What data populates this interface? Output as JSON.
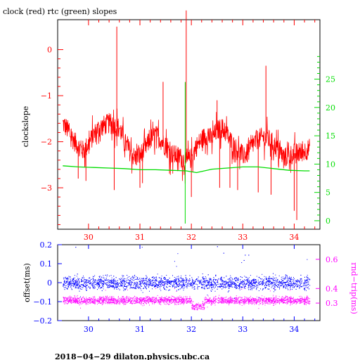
{
  "colors": {
    "clock": "#ff0000",
    "rtc": "#00dd00",
    "offset": "#0000ff",
    "roundtrip": "#ff00ff",
    "axis": "#000000"
  },
  "chart_data": [
    {
      "type": "line",
      "title": "clock (red) rtc (green) slopes",
      "ylabel": "clockslope",
      "y2label": "",
      "xlim": [
        29.4,
        34.5
      ],
      "ylim": [
        -3.9,
        0.65
      ],
      "y2lim": [
        -1.5,
        35.5
      ],
      "x_ticks": [
        "30",
        "31",
        "32",
        "33",
        "34"
      ],
      "y_ticks": [
        "0",
        "−1",
        "−2",
        "−3"
      ],
      "y2_ticks": [
        "0",
        "5",
        "10",
        "15",
        "20",
        "25"
      ],
      "series": [
        {
          "name": "clock",
          "axis": "left",
          "x": [
            29.5,
            29.6,
            29.7,
            29.8,
            29.9,
            30.0,
            30.1,
            30.2,
            30.3,
            30.4,
            30.5,
            30.6,
            30.7,
            30.8,
            30.9,
            31.0,
            31.1,
            31.2,
            31.3,
            31.4,
            31.5,
            31.6,
            31.7,
            31.8,
            31.9,
            32.0,
            32.1,
            32.2,
            32.3,
            32.4,
            32.5,
            32.6,
            32.7,
            32.8,
            32.9,
            33.0,
            33.1,
            33.2,
            33.3,
            33.4,
            33.5,
            33.6,
            33.7,
            33.8,
            33.9,
            34.0,
            34.1,
            34.2,
            34.3
          ],
          "y": [
            -1.6,
            -1.75,
            -1.95,
            -2.1,
            -2.2,
            -2.05,
            -1.85,
            -1.7,
            -1.65,
            -1.6,
            -1.65,
            -1.7,
            -2.0,
            -2.2,
            -2.35,
            -2.3,
            -2.15,
            -1.95,
            -1.85,
            -1.95,
            -2.1,
            -2.25,
            -2.3,
            -2.35,
            -2.45,
            -2.35,
            -2.1,
            -1.95,
            -1.85,
            -1.95,
            -1.75,
            -1.7,
            -1.85,
            -2.05,
            -2.2,
            -2.3,
            -2.25,
            -2.05,
            -1.95,
            -1.9,
            -1.95,
            -2.05,
            -2.2,
            -2.35,
            -2.3,
            -2.25,
            -2.25,
            -2.2,
            -2.15
          ]
        },
        {
          "name": "rtc",
          "axis": "right",
          "x": [
            29.5,
            29.8,
            30.1,
            30.4,
            30.7,
            31.0,
            31.3,
            31.6,
            31.9,
            32.1,
            32.4,
            32.7,
            33.0,
            33.3,
            33.6,
            33.9,
            34.2,
            34.3
          ],
          "y": [
            9.7,
            9.5,
            9.4,
            9.3,
            9.2,
            9.0,
            9.0,
            8.9,
            8.8,
            8.5,
            9.1,
            9.3,
            9.5,
            9.5,
            9.2,
            8.9,
            8.8,
            8.8
          ]
        }
      ],
      "spikes": {
        "clock": [
          [
            29.8,
            -2.8
          ],
          [
            29.95,
            -2.85
          ],
          [
            30.55,
            0.5
          ],
          [
            30.5,
            -3.05
          ],
          [
            31.0,
            -3.0
          ],
          [
            31.05,
            -2.9
          ],
          [
            31.45,
            -0.7
          ],
          [
            31.9,
            0.85
          ],
          [
            32.0,
            -3.2
          ],
          [
            32.5,
            -1.1
          ],
          [
            32.55,
            -3.0
          ],
          [
            32.75,
            -3.0
          ],
          [
            32.9,
            -3.05
          ],
          [
            33.3,
            -3.1
          ],
          [
            33.45,
            -0.35
          ],
          [
            33.55,
            -3.15
          ],
          [
            34.0,
            -3.5
          ],
          [
            34.05,
            -3.7
          ]
        ],
        "rtc": [
          [
            31.88,
            24.5
          ],
          [
            31.88,
            -0.5
          ]
        ]
      }
    },
    {
      "type": "scatter",
      "title": "",
      "xlabel": "",
      "ylabel": "offset(ms)",
      "y2label": "rnd−trip(ms)",
      "xlim": [
        29.4,
        34.5
      ],
      "ylim": [
        -0.2,
        0.2
      ],
      "y2lim": [
        0.18,
        0.7
      ],
      "x_ticks": [
        "30",
        "31",
        "32",
        "33",
        "34"
      ],
      "y_ticks": [
        "0.2",
        "0.1",
        "0",
        "−0.1",
        "−0.2"
      ],
      "y2_ticks": [
        "0.6",
        "0.4",
        "0.3"
      ],
      "y2_tick_values": [
        0.6,
        0.4,
        0.3
      ],
      "series": [
        {
          "name": "offset",
          "axis": "left",
          "x_range": [
            29.5,
            34.3
          ],
          "center": 0.0,
          "spread": 0.035
        },
        {
          "name": "roundtrip",
          "axis": "right",
          "x_range": [
            29.5,
            34.3
          ],
          "center": 0.32,
          "spread": 0.025,
          "dip_range": [
            32.0,
            32.25
          ],
          "dip_center": 0.28
        }
      ]
    }
  ],
  "footer": "2018−04−29  dilaton.physics.ubc.ca"
}
